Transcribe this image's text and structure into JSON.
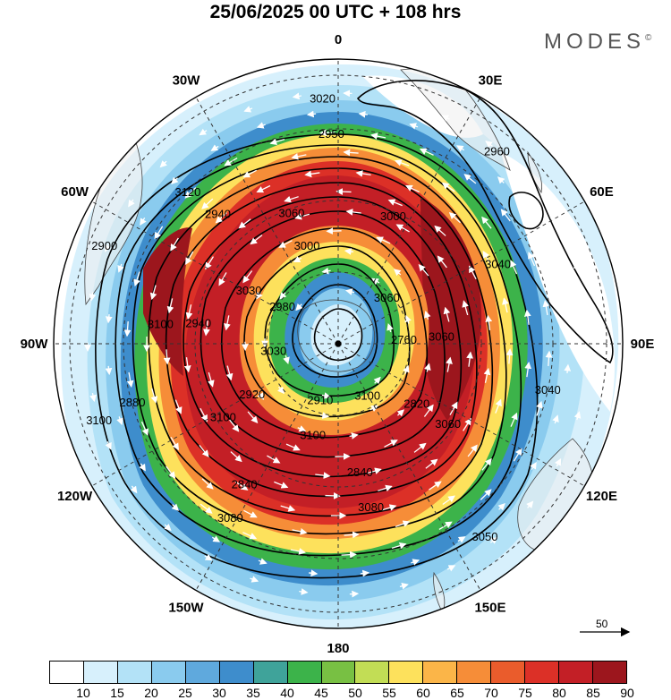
{
  "title": "25/06/2025  00 UTC  + 108 hrs",
  "brand": "MODES",
  "brand_mark": "©",
  "longitude_labels": [
    {
      "text": "0",
      "lon": 0
    },
    {
      "text": "30E",
      "lon": 30
    },
    {
      "text": "60E",
      "lon": 60
    },
    {
      "text": "90E",
      "lon": 90
    },
    {
      "text": "120E",
      "lon": 120
    },
    {
      "text": "150E",
      "lon": 150
    },
    {
      "text": "180",
      "lon": 180
    },
    {
      "text": "150W",
      "lon": -150
    },
    {
      "text": "120W",
      "lon": -120
    },
    {
      "text": "90W",
      "lon": -90
    },
    {
      "text": "60W",
      "lon": -60
    },
    {
      "text": "30W",
      "lon": -30
    }
  ],
  "wind_speed_colorbar": {
    "colors": [
      "#ffffff",
      "#d7f0fc",
      "#b3e2f7",
      "#8acbee",
      "#5fa9dd",
      "#3e8dcc",
      "#3fa39a",
      "#3cb34a",
      "#78c043",
      "#c2dd55",
      "#fde15c",
      "#fbb548",
      "#f68d38",
      "#ea5c2c",
      "#dc3027",
      "#c31f26",
      "#9c161d"
    ],
    "ticks": [
      "10",
      "15",
      "20",
      "25",
      "30",
      "35",
      "40",
      "45",
      "50",
      "55",
      "60",
      "65",
      "70",
      "75",
      "80",
      "85",
      "90"
    ]
  },
  "reference_vector_label": "50",
  "contour_labels": [
    "2760",
    "2820",
    "2840",
    "2840",
    "2880",
    "2900",
    "2910",
    "2920",
    "2940",
    "2940",
    "2950",
    "2960",
    "2980",
    "3000",
    "3000",
    "3040",
    "3040",
    "3050",
    "3060",
    "3060",
    "3060",
    "3080",
    "3080",
    "3100",
    "3100",
    "3100",
    "3100",
    "3100",
    "3120",
    "3020",
    "3030",
    "3030",
    "3060"
  ]
}
